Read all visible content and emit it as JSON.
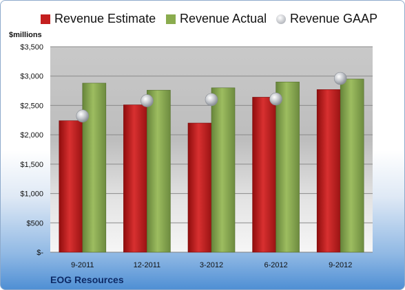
{
  "company": "EOG Resources",
  "chart_data": {
    "type": "bar",
    "ylabel": "$millions",
    "categories": [
      "9-2011",
      "12-2011",
      "3-2012",
      "6-2012",
      "9-2012"
    ],
    "ylim": [
      0,
      3500
    ],
    "yticks": [
      0,
      500,
      1000,
      1500,
      2000,
      2500,
      3000,
      3500
    ],
    "yticklabels": [
      "$-",
      "$500",
      "$1,000",
      "$1,500",
      "$2,000",
      "$2,500",
      "$3,000",
      "$3,500"
    ],
    "grid": true,
    "legend_position": "top",
    "series": [
      {
        "name": "Revenue Estimate",
        "kind": "bar",
        "color": "#c41f1f",
        "values": [
          2240,
          2510,
          2200,
          2640,
          2770
        ]
      },
      {
        "name": "Revenue Actual",
        "kind": "bar",
        "color": "#8aac4e",
        "values": [
          2880,
          2760,
          2800,
          2900,
          2950
        ]
      },
      {
        "name": "Revenue GAAP",
        "kind": "marker",
        "color": "#b8bcc4",
        "values": [
          2320,
          2580,
          2600,
          2610,
          2960
        ]
      }
    ]
  }
}
